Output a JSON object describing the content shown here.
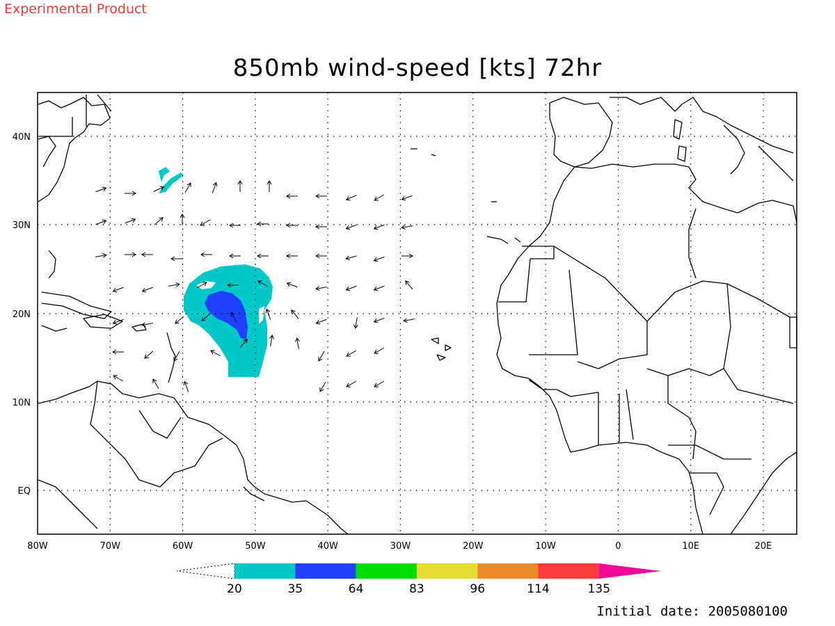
{
  "header": {
    "experimental_label": "Experimental Product"
  },
  "title": "850mb wind-speed [kts] 72hr",
  "footer": {
    "initial_date": "Initial date: 2005080100"
  },
  "map": {
    "lon_labels": [
      "80W",
      "70W",
      "60W",
      "50W",
      "40W",
      "30W",
      "20W",
      "10W",
      "0",
      "10E",
      "20E"
    ],
    "lat_labels": [
      "40N",
      "30N",
      "20N",
      "10N",
      "EQ"
    ],
    "coastline_color": "#000000",
    "grid_style": "dotted"
  },
  "colorbar": {
    "colors": [
      "#00c8c8",
      "#2040ff",
      "#00dc00",
      "#e6dc32",
      "#f08c28",
      "#fa3c3c",
      "#f00a96"
    ],
    "labels": [
      "20",
      "35",
      "64",
      "83",
      "96",
      "114",
      "135"
    ]
  },
  "wind_speed_region_colors": {
    "20-35": "#00c8c8",
    "35-64": "#2040ff"
  }
}
